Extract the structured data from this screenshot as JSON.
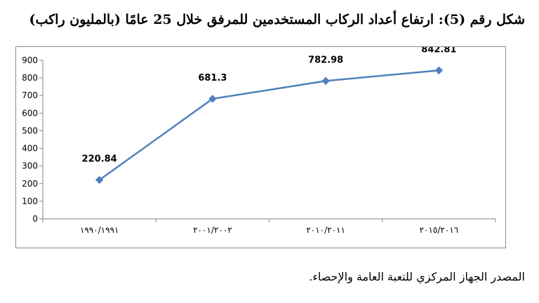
{
  "title": "شكل رقم (5): ارتفاع أعداد الركاب المستخدمين للمرفق خلال 25 عامًا (بالمليون راكب)",
  "source": "المصدر الجهاز المركزي للتعبة العامة والإحصاء.",
  "colors": {
    "series_line": "#4f81bd",
    "axis": "#868686",
    "text": "#000000"
  },
  "chart_data": {
    "type": "line",
    "title": "شكل رقم (5): ارتفاع أعداد الركاب المستخدمين للمرفق خلال 25 عامًا (بالمليون راكب)",
    "xlabel": "",
    "ylabel": "",
    "categories": [
      "١٩٩٠/١٩٩١",
      "٢٠٠١/٢٠٠٢",
      "٢٠١٠/٢٠١١",
      "٢٠١٥/٢٠١٦"
    ],
    "values": [
      220.84,
      681.3,
      782.98,
      842.81
    ],
    "data_labels": [
      "220.84",
      "681.3",
      "782.98",
      "842.81"
    ],
    "ylim": [
      0,
      900
    ],
    "yticks": [
      0,
      100,
      200,
      300,
      400,
      500,
      600,
      700,
      800,
      900
    ],
    "grid": false,
    "legend": "none",
    "marker": "diamond"
  }
}
